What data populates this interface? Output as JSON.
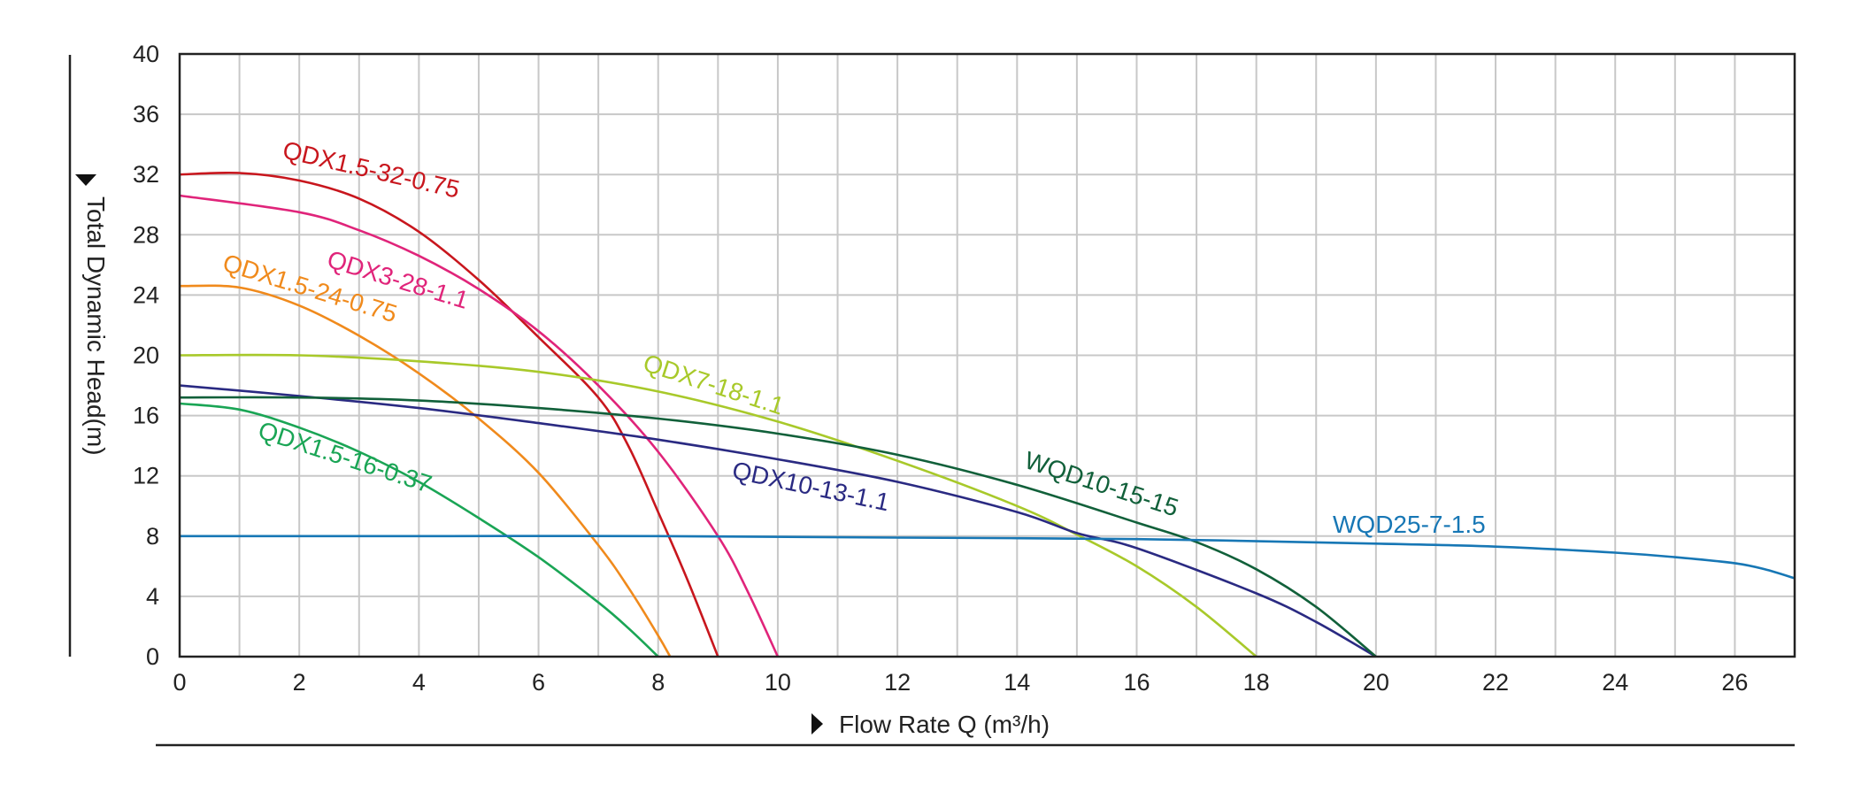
{
  "chart_data": {
    "type": "line",
    "xlabel": "Flow Rate Q (m³/h)",
    "ylabel": "Total Dynamic Head(m)",
    "xlim": [
      0,
      27
    ],
    "ylim": [
      0,
      40
    ],
    "x_ticks": [
      0,
      2,
      4,
      6,
      8,
      10,
      12,
      14,
      16,
      18,
      20,
      22,
      24,
      26
    ],
    "y_ticks": [
      0,
      4,
      8,
      12,
      16,
      20,
      24,
      28,
      32,
      36,
      40
    ],
    "grid": true,
    "series": [
      {
        "name": "QDX1.5-32-0.75",
        "color": "#c8161d",
        "x": [
          0,
          1,
          2,
          3,
          4,
          5,
          6,
          7,
          7.5,
          8,
          8.5,
          9
        ],
        "y": [
          32.0,
          32.1,
          31.6,
          30.4,
          28.2,
          25.0,
          21.2,
          17.2,
          14.0,
          9.6,
          5.0,
          0
        ]
      },
      {
        "name": "QDX3-28-1.1",
        "color": "#e0247a",
        "x": [
          0,
          2,
          3,
          4,
          5,
          6,
          7,
          8,
          9,
          9.5,
          10
        ],
        "y": [
          30.6,
          29.5,
          28.3,
          26.6,
          24.4,
          21.6,
          18.0,
          13.6,
          8.0,
          4.3,
          0
        ]
      },
      {
        "name": "QDX1.5-24-0.75",
        "color": "#f08a1c",
        "x": [
          0,
          1,
          2,
          3,
          4,
          5,
          6,
          7,
          7.5,
          8,
          8.2
        ],
        "y": [
          24.6,
          24.5,
          23.3,
          21.3,
          18.8,
          15.8,
          12.2,
          7.4,
          4.6,
          1.4,
          0
        ]
      },
      {
        "name": "QDX7-18-1.1",
        "color": "#a8c92a",
        "x": [
          0,
          2,
          4,
          6,
          8,
          10,
          12,
          14,
          15,
          16,
          17,
          18
        ],
        "y": [
          20.0,
          20.0,
          19.6,
          18.9,
          17.6,
          15.6,
          13.0,
          10.0,
          8.1,
          6.0,
          3.3,
          0
        ]
      },
      {
        "name": "QDX1.5-16-0.37",
        "color": "#1aa555",
        "x": [
          0,
          1,
          2,
          3,
          4,
          5,
          6,
          7,
          7.5,
          8
        ],
        "y": [
          16.8,
          16.4,
          15.2,
          13.6,
          11.6,
          9.2,
          6.6,
          3.6,
          1.9,
          0
        ]
      },
      {
        "name": "QDX10-13-1.1",
        "color": "#2a2a82",
        "x": [
          0,
          2,
          4,
          6,
          8,
          10,
          12,
          14,
          15,
          16,
          18,
          19,
          20
        ],
        "y": [
          18.0,
          17.3,
          16.5,
          15.5,
          14.4,
          13.1,
          11.6,
          9.6,
          8.2,
          7.2,
          4.2,
          2.3,
          0
        ]
      },
      {
        "name": "WQD10-15-15",
        "color": "#11603a",
        "x": [
          0,
          2,
          4,
          6,
          8,
          10,
          12,
          14,
          16,
          17,
          18,
          19,
          20
        ],
        "y": [
          17.2,
          17.2,
          17.0,
          16.5,
          15.8,
          14.8,
          13.4,
          11.4,
          8.9,
          7.6,
          5.8,
          3.3,
          0
        ]
      },
      {
        "name": "WQD25-7-1.5",
        "color": "#1777b5",
        "x": [
          0,
          4,
          8,
          12,
          16,
          20,
          22,
          24,
          25,
          26,
          26.5,
          27
        ],
        "y": [
          8.0,
          8.0,
          8.0,
          7.9,
          7.8,
          7.5,
          7.3,
          6.9,
          6.6,
          6.2,
          5.8,
          5.2
        ]
      }
    ],
    "labels": [
      {
        "text": "QDX1.5-32-0.75",
        "color": "#c8161d"
      },
      {
        "text": "QDX3-28-1.1",
        "color": "#e0247a"
      },
      {
        "text": "QDX1.5-24-0.75",
        "color": "#f08a1c"
      },
      {
        "text": "QDX7-18-1.1",
        "color": "#a8c92a"
      },
      {
        "text": "QDX1.5-16-0.37",
        "color": "#1aa555"
      },
      {
        "text": "QDX10-13-1.1",
        "color": "#2a2a82"
      },
      {
        "text": "WQD10-15-15",
        "color": "#11603a"
      },
      {
        "text": "WQD25-7-1.5",
        "color": "#1777b5"
      }
    ]
  }
}
